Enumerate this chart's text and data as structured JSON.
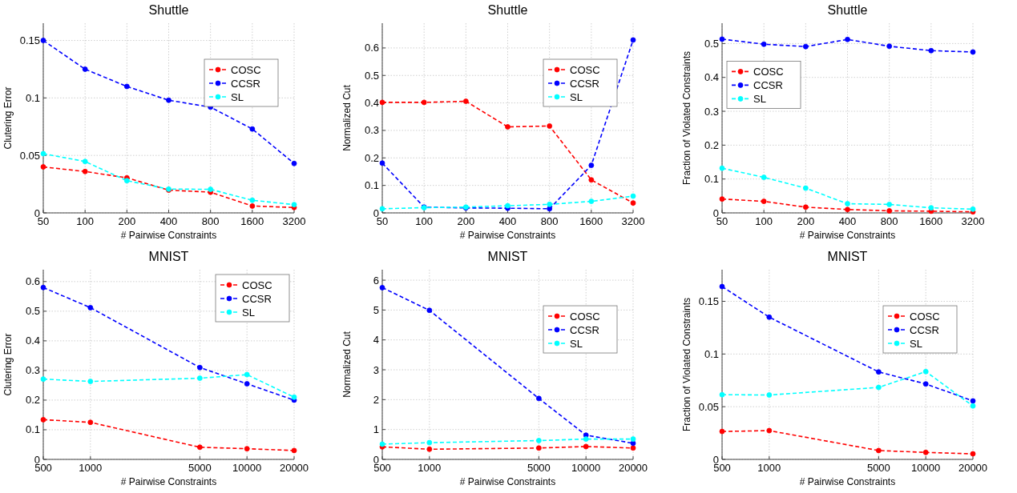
{
  "chart_data": [
    {
      "type": "line",
      "title": "Shuttle",
      "xlabel": "# Pairwise Constraints",
      "ylabel": "Clutering Error",
      "log": "x",
      "x": [
        50,
        100,
        200,
        400,
        800,
        1600,
        3200
      ],
      "xlim": [
        50,
        3200
      ],
      "xticks": [
        50,
        100,
        200,
        400,
        800,
        1600,
        3200
      ],
      "ylim": [
        0,
        0.165
      ],
      "yticks": [
        0,
        0.05,
        0.1,
        0.15
      ],
      "grid": true,
      "legend": "right",
      "marker": "circle",
      "line_style": "dashed",
      "series": [
        {
          "name": "COSC",
          "color": "#ff0000",
          "values": [
            0.04,
            0.036,
            0.0305,
            0.0198,
            0.018,
            0.006,
            0.0047
          ]
        },
        {
          "name": "CCSR",
          "color": "#0000ff",
          "values": [
            0.15,
            0.125,
            0.11,
            0.098,
            0.092,
            0.073,
            0.043
          ]
        },
        {
          "name": "SL",
          "color": "#00ffff",
          "values": [
            0.0515,
            0.0447,
            0.028,
            0.0207,
            0.0205,
            0.011,
            0.0072
          ]
        }
      ]
    },
    {
      "type": "line",
      "title": "Shuttle",
      "xlabel": "# Pairwise Constraints",
      "ylabel": "Normalized Cut",
      "log": "x",
      "x": [
        50,
        100,
        200,
        400,
        800,
        1600,
        3200
      ],
      "xlim": [
        50,
        3200
      ],
      "xticks": [
        50,
        100,
        200,
        400,
        800,
        1600,
        3200
      ],
      "ylim": [
        0,
        0.69
      ],
      "yticks": [
        0,
        0.1,
        0.2,
        0.3,
        0.4,
        0.5,
        0.6
      ],
      "grid": true,
      "legend": "right",
      "marker": "circle",
      "line_style": "dashed",
      "series": [
        {
          "name": "COSC",
          "color": "#ff0000",
          "values": [
            0.402,
            0.402,
            0.406,
            0.313,
            0.316,
            0.12,
            0.036
          ]
        },
        {
          "name": "CCSR",
          "color": "#0000ff",
          "values": [
            0.181,
            0.021,
            0.018,
            0.017,
            0.015,
            0.173,
            0.629
          ]
        },
        {
          "name": "SL",
          "color": "#00ffff",
          "values": [
            0.015,
            0.019,
            0.021,
            0.026,
            0.031,
            0.042,
            0.061
          ]
        }
      ]
    },
    {
      "type": "line",
      "title": "Shuttle",
      "xlabel": "# Pairwise Constraints",
      "ylabel": "Fraction of Violated Constraints",
      "log": "x",
      "x": [
        50,
        100,
        200,
        400,
        800,
        1600,
        3200
      ],
      "xlim": [
        50,
        3200
      ],
      "xticks": [
        50,
        100,
        200,
        400,
        800,
        1600,
        3200
      ],
      "ylim": [
        0,
        0.56
      ],
      "yticks": [
        0,
        0.1,
        0.2,
        0.3,
        0.4,
        0.5
      ],
      "grid": true,
      "legend": "top left",
      "marker": "circle",
      "line_style": "dashed",
      "series": [
        {
          "name": "COSC",
          "color": "#ff0000",
          "values": [
            0.041,
            0.034,
            0.017,
            0.01,
            0.006,
            0.005,
            0.003
          ]
        },
        {
          "name": "CCSR",
          "color": "#0000ff",
          "values": [
            0.513,
            0.498,
            0.491,
            0.512,
            0.492,
            0.479,
            0.475
          ]
        },
        {
          "name": "SL",
          "color": "#00ffff",
          "values": [
            0.132,
            0.105,
            0.073,
            0.027,
            0.025,
            0.015,
            0.011
          ]
        }
      ]
    },
    {
      "type": "line",
      "title": "MNIST",
      "xlabel": "# Pairwise Constraints",
      "ylabel": "Clutering Error",
      "log": "x",
      "x": [
        500,
        1000,
        5000,
        10000,
        20000
      ],
      "xlim": [
        500,
        20000
      ],
      "xticks": [
        500,
        1000,
        5000,
        10000,
        20000
      ],
      "ylim": [
        0,
        0.64
      ],
      "yticks": [
        0,
        0.1,
        0.2,
        0.3,
        0.4,
        0.5,
        0.6
      ],
      "grid": true,
      "legend": "top right",
      "marker": "circle",
      "line_style": "dashed",
      "series": [
        {
          "name": "COSC",
          "color": "#ff0000",
          "values": [
            0.134,
            0.125,
            0.041,
            0.036,
            0.03
          ]
        },
        {
          "name": "CCSR",
          "color": "#0000ff",
          "values": [
            0.58,
            0.512,
            0.31,
            0.255,
            0.2
          ]
        },
        {
          "name": "SL",
          "color": "#00ffff",
          "values": [
            0.271,
            0.263,
            0.274,
            0.286,
            0.21
          ]
        }
      ]
    },
    {
      "type": "line",
      "title": "MNIST",
      "xlabel": "# Pairwise Constraints",
      "ylabel": "Normalized Cut",
      "log": "x",
      "x": [
        500,
        1000,
        5000,
        10000,
        20000
      ],
      "xlim": [
        500,
        20000
      ],
      "xticks": [
        500,
        1000,
        5000,
        10000,
        20000
      ],
      "ylim": [
        0,
        6.35
      ],
      "yticks": [
        0,
        1,
        2,
        3,
        4,
        5,
        6
      ],
      "grid": true,
      "legend": "right",
      "marker": "circle",
      "line_style": "dashed",
      "series": [
        {
          "name": "COSC",
          "color": "#ff0000",
          "values": [
            0.42,
            0.34,
            0.38,
            0.43,
            0.38
          ]
        },
        {
          "name": "CCSR",
          "color": "#0000ff",
          "values": [
            5.75,
            4.99,
            2.04,
            0.81,
            0.54
          ]
        },
        {
          "name": "SL",
          "color": "#00ffff",
          "values": [
            0.51,
            0.56,
            0.63,
            0.68,
            0.68
          ]
        }
      ]
    },
    {
      "type": "line",
      "title": "MNIST",
      "xlabel": "# Pairwise Constraints",
      "ylabel": "Fraction of Violated Constraints",
      "log": "x",
      "x": [
        500,
        1000,
        5000,
        10000,
        20000
      ],
      "xlim": [
        500,
        20000
      ],
      "xticks": [
        500,
        1000,
        5000,
        10000,
        20000
      ],
      "ylim": [
        0,
        0.18
      ],
      "yticks": [
        0,
        0.05,
        0.1,
        0.15
      ],
      "grid": true,
      "legend": "right",
      "marker": "circle",
      "line_style": "dashed",
      "series": [
        {
          "name": "COSC",
          "color": "#ff0000",
          "values": [
            0.0265,
            0.0273,
            0.0084,
            0.0066,
            0.0053
          ]
        },
        {
          "name": "CCSR",
          "color": "#0000ff",
          "values": [
            0.164,
            0.135,
            0.083,
            0.0716,
            0.0555
          ]
        },
        {
          "name": "SL",
          "color": "#00ffff",
          "values": [
            0.0614,
            0.0611,
            0.0683,
            0.0833,
            0.0507
          ]
        }
      ]
    }
  ]
}
